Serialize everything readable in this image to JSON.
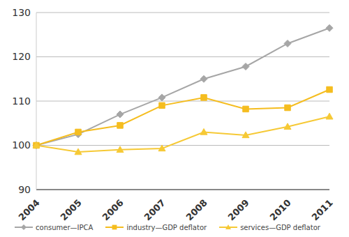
{
  "chart_data": {
    "type": "line",
    "categories": [
      "2004",
      "2005",
      "2006",
      "2007",
      "2008",
      "2009",
      "2010",
      "2011"
    ],
    "series": [
      {
        "name": "consumer—IPCA",
        "color": "#a6a6a6",
        "marker": "diamond",
        "values": [
          100,
          102.5,
          107,
          110.8,
          115,
          117.8,
          123,
          126.5
        ]
      },
      {
        "name": "industry—GDP deflator",
        "color": "#f5bd1f",
        "marker": "square",
        "values": [
          100,
          103,
          104.5,
          109,
          110.8,
          108.2,
          108.5,
          112.6
        ]
      },
      {
        "name": "services—GDP deflator",
        "color": "#f6c935",
        "marker": "triangle",
        "values": [
          100,
          98.5,
          99,
          99.3,
          103,
          102.3,
          104.2,
          106.5
        ]
      }
    ],
    "ylim": [
      90,
      130
    ],
    "yticks": [
      90,
      100,
      110,
      120,
      130
    ],
    "grid": true,
    "legend": "bottom"
  }
}
